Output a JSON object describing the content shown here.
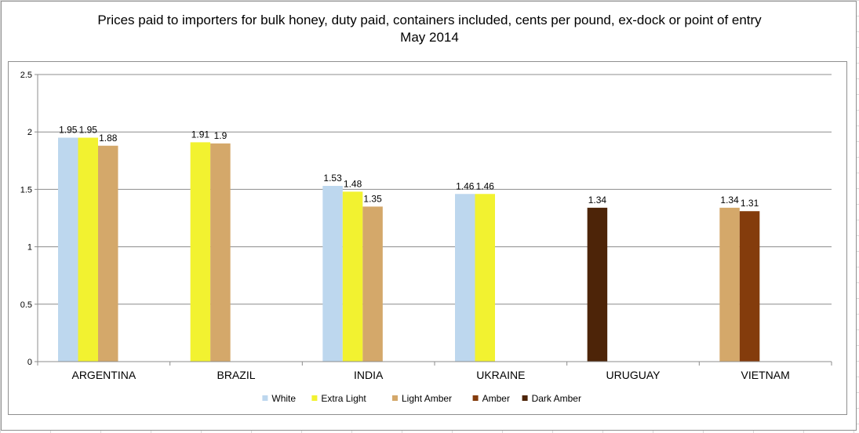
{
  "chart_data": {
    "type": "bar",
    "title": "Prices paid to importers for bulk honey, duty paid, containers included, cents per pound, ex-dock or point of entry",
    "subtitle": "May 2014",
    "xlabel": "",
    "ylabel": "",
    "ylim": [
      0,
      2.5
    ],
    "yticks": [
      "0",
      "0.5",
      "1",
      "1.5",
      "2",
      "2.5"
    ],
    "grid": true,
    "legend_position": "bottom",
    "categories": [
      "ARGENTINA",
      "BRAZIL",
      "INDIA",
      "UKRAINE",
      "URUGUAY",
      "VIETNAM"
    ],
    "series": [
      {
        "name": "White",
        "color": "#bdd7ee",
        "values": [
          1.95,
          null,
          1.53,
          1.46,
          null,
          null
        ]
      },
      {
        "name": "Extra Light",
        "color": "#f2f230",
        "values": [
          1.95,
          1.91,
          1.48,
          1.46,
          null,
          null
        ]
      },
      {
        "name": "Light Amber",
        "color": "#d4a86a",
        "values": [
          1.88,
          1.9,
          1.35,
          null,
          null,
          1.34
        ]
      },
      {
        "name": "Amber",
        "color": "#843c0c",
        "values": [
          null,
          null,
          null,
          null,
          null,
          1.31
        ]
      },
      {
        "name": "Dark Amber",
        "color": "#4d2408",
        "values": [
          null,
          null,
          null,
          null,
          1.34,
          null
        ]
      }
    ],
    "data_labels": [
      [
        "1.95",
        null,
        "1.53",
        "1.46",
        null,
        null
      ],
      [
        "1.95",
        "1.91",
        "1.48",
        "1.46",
        null,
        null
      ],
      [
        "1.88",
        "1.9",
        "1.35",
        null,
        null,
        "1.34"
      ],
      [
        null,
        null,
        null,
        null,
        null,
        "1.31"
      ],
      [
        null,
        null,
        null,
        null,
        "1.34",
        null
      ]
    ]
  }
}
